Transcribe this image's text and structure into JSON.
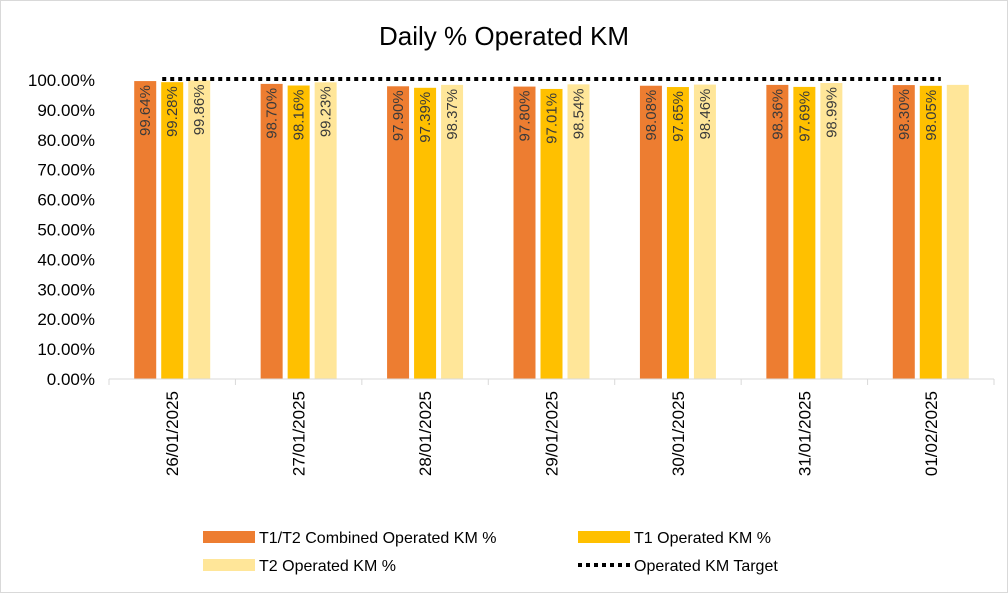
{
  "chart_data": {
    "type": "bar",
    "title": "Daily % Operated KM",
    "categories": [
      "26/01/2025",
      "27/01/2025",
      "28/01/2025",
      "29/01/2025",
      "30/01/2025",
      "31/01/2025",
      "01/02/2025"
    ],
    "series": [
      {
        "name": "T1/T2 Combined Operated KM %",
        "color": "#ED7D31",
        "values": [
          99.64,
          98.7,
          97.9,
          97.8,
          98.08,
          98.36,
          98.3
        ],
        "labels": [
          "99.64%",
          "98.70%",
          "97.90%",
          "97.80%",
          "98.08%",
          "98.36%",
          "98.30%"
        ]
      },
      {
        "name": "T1 Operated KM %",
        "color": "#FFC000",
        "values": [
          99.28,
          98.16,
          97.39,
          97.01,
          97.65,
          97.69,
          98.05
        ],
        "labels": [
          "99.28%",
          "98.16%",
          "97.39%",
          "97.01%",
          "97.65%",
          "97.69%",
          "98.05%"
        ]
      },
      {
        "name": "T2 Operated KM %",
        "color": "#FFE699",
        "values": [
          99.86,
          99.23,
          98.37,
          98.54,
          98.46,
          98.99,
          98.37
        ],
        "labels": [
          "99.86%",
          "99.23%",
          "98.37%",
          "98.54%",
          "98.46%",
          "98.99%",
          ""
        ]
      }
    ],
    "target": {
      "name": "Operated KM Target",
      "value": 99.0,
      "color": "#000000"
    },
    "ylim": [
      0,
      100
    ],
    "yticks": [
      "0.00%",
      "10.00%",
      "20.00%",
      "30.00%",
      "40.00%",
      "50.00%",
      "60.00%",
      "70.00%",
      "80.00%",
      "90.00%",
      "100.00%"
    ],
    "xlabel": "",
    "ylabel": "",
    "grid": false,
    "legend_position": "bottom"
  }
}
